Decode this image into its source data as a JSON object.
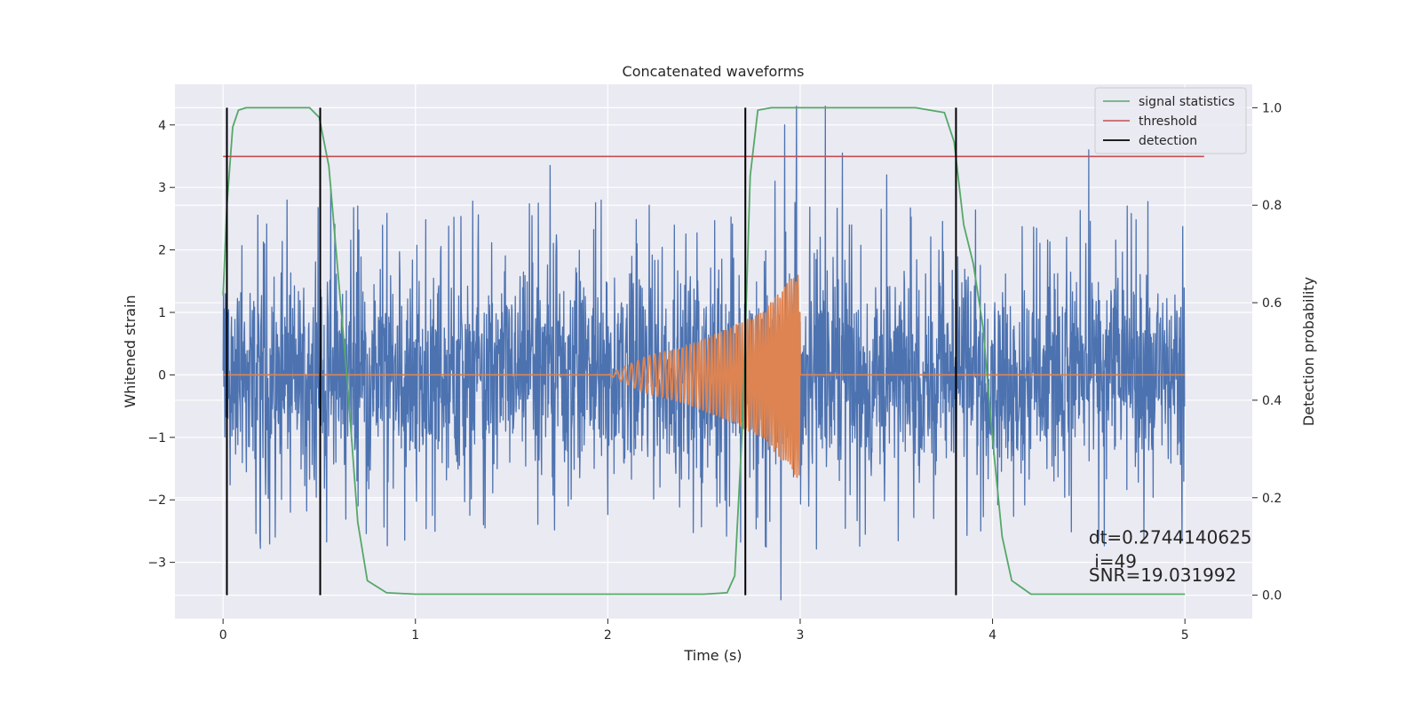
{
  "chart_data": {
    "type": "line",
    "title": "Concatenated waveforms",
    "xlabel": "Time (s)",
    "ylabel": "Whitened strain",
    "y2label": "Detection probability",
    "xlim": [
      -0.25,
      5.35
    ],
    "ylim": [
      -3.9,
      4.65
    ],
    "y2lim": [
      -0.048,
      1.048
    ],
    "xticks": [
      0,
      1,
      2,
      3,
      4,
      5
    ],
    "xtick_labels": [
      "0",
      "1",
      "2",
      "3",
      "4",
      "5"
    ],
    "yticks": [
      -3,
      -2,
      -1,
      0,
      1,
      2,
      3,
      4
    ],
    "ytick_labels": [
      "−3",
      "−2",
      "−1",
      "0",
      "1",
      "2",
      "3",
      "4"
    ],
    "y2ticks": [
      0.0,
      0.2,
      0.4,
      0.6,
      0.8,
      1.0
    ],
    "y2tick_labels": [
      "0.0",
      "0.2",
      "0.4",
      "0.6",
      "0.8",
      "1.0"
    ],
    "grid": true,
    "legend_position": "top-right",
    "colors": {
      "strain": "#4c72b0",
      "template": "#dd8452",
      "signal_statistics": "#55a868",
      "threshold": "#c44e52",
      "detection": "#000000",
      "axes_bg": "#eaeaf2",
      "grid": "#ffffff"
    },
    "series": [
      {
        "name": "",
        "axis": "left",
        "kind": "noise",
        "t_start": 0,
        "t_end": 5,
        "description_values": {
          "typical_min": -2.3,
          "typical_max": 2.5,
          "min": -3.6,
          "max": 4.3
        },
        "peaks": [
          {
            "x": 2.87,
            "y": 3.1
          },
          {
            "x": 2.92,
            "y": 4.0
          },
          {
            "x": 2.98,
            "y": 4.3
          },
          {
            "x": 3.13,
            "y": 4.3
          },
          {
            "x": 3.22,
            "y": 3.55
          },
          {
            "x": 3.45,
            "y": 3.2
          },
          {
            "x": 4.5,
            "y": 3.6
          },
          {
            "x": 1.7,
            "y": 3.35
          },
          {
            "x": 0.56,
            "y": 3.05
          },
          {
            "x": 2.9,
            "y": -3.6
          }
        ]
      },
      {
        "name": "",
        "axis": "left",
        "kind": "chirp",
        "x": [
          0,
          2,
          2.2,
          2.4,
          2.6,
          2.8,
          3.0,
          3.0,
          5.0
        ],
        "amplitude": [
          0,
          0,
          0.3,
          0.45,
          0.7,
          1.0,
          1.7,
          0,
          0
        ]
      },
      {
        "name": "signal statistics",
        "axis": "right",
        "x": [
          0.0,
          0.02,
          0.05,
          0.08,
          0.12,
          0.45,
          0.5,
          0.55,
          0.6,
          0.65,
          0.7,
          0.75,
          0.85,
          1.0,
          2.5,
          2.62,
          2.66,
          2.7,
          2.74,
          2.78,
          2.85,
          3.6,
          3.75,
          3.8,
          3.85,
          3.9,
          3.95,
          4.0,
          4.05,
          4.1,
          4.2,
          5.0
        ],
        "y": [
          0.615,
          0.8,
          0.96,
          0.995,
          1.0,
          1.0,
          0.98,
          0.88,
          0.65,
          0.42,
          0.15,
          0.03,
          0.005,
          0.002,
          0.002,
          0.005,
          0.04,
          0.35,
          0.86,
          0.995,
          1.0,
          1.0,
          0.99,
          0.93,
          0.76,
          0.68,
          0.55,
          0.32,
          0.12,
          0.03,
          0.002,
          0.002
        ]
      },
      {
        "name": "threshold",
        "axis": "right",
        "x": [
          0,
          5.1
        ],
        "y": [
          0.9,
          0.9
        ]
      },
      {
        "name": "detection",
        "axis": "right",
        "kind": "vlines",
        "x": [
          0.02,
          0.505,
          2.715,
          3.81
        ],
        "ymin": 0.0,
        "ymax": 1.0
      }
    ],
    "annotations": [
      {
        "text": "dt=0.2744140625",
        "x": 4.5,
        "y": -2.7
      },
      {
        "text": " i=49",
        "x": 4.5,
        "y": -3.08
      },
      {
        "text": "SNR=19.031992",
        "x": 4.5,
        "y": -3.3
      }
    ]
  }
}
